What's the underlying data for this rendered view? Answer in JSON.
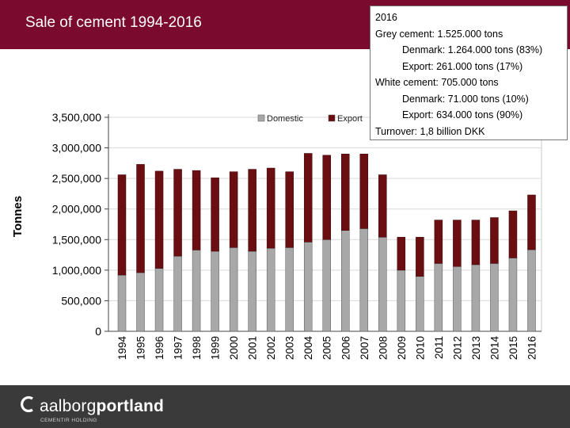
{
  "header": {
    "title": "Sale of cement 1994-2016"
  },
  "info_box": {
    "lines": [
      "2016",
      "Grey cement: 1.525.000 tons",
      "Denmark: 1.264.000 tons (83%)",
      "Export: 261.000 tons (17%)",
      "White cement: 705.000 tons",
      "Denmark: 71.000 tons (10%)",
      "Export: 634.000 tons (90%)",
      "Turnover: 1,8 billion DKK"
    ]
  },
  "footer": {
    "logo_part1": "aalborg",
    "logo_part2": "portland",
    "logo_subtitle": "CEMENTIR HOLDING"
  },
  "chart_data": {
    "type": "bar",
    "stacked": true,
    "categories": [
      "1994",
      "1995",
      "1996",
      "1997",
      "1998",
      "1999",
      "2000",
      "2001",
      "2002",
      "2003",
      "2004",
      "2005",
      "2006",
      "2007",
      "2008",
      "2009",
      "2010",
      "2011",
      "2012",
      "2013",
      "2014",
      "2015",
      "2016"
    ],
    "series": [
      {
        "name": "Domestic",
        "color": "#a8a8a8",
        "values": [
          920000,
          960000,
          1030000,
          1230000,
          1330000,
          1310000,
          1370000,
          1310000,
          1360000,
          1370000,
          1460000,
          1500000,
          1650000,
          1680000,
          1540000,
          1000000,
          900000,
          1110000,
          1060000,
          1090000,
          1110000,
          1200000,
          1335000
        ]
      },
      {
        "name": "Export",
        "color": "#6b0e12",
        "values": [
          1640000,
          1770000,
          1590000,
          1420000,
          1300000,
          1200000,
          1240000,
          1340000,
          1310000,
          1240000,
          1450000,
          1380000,
          1250000,
          1220000,
          1020000,
          540000,
          640000,
          710000,
          760000,
          730000,
          750000,
          770000,
          895000
        ]
      }
    ],
    "ylabel": "Tonnes",
    "xlabel": "",
    "ylim": [
      0,
      3500000
    ],
    "yticks": [
      0,
      500000,
      1000000,
      1500000,
      2000000,
      2500000,
      3000000,
      3500000
    ],
    "ytick_labels": [
      "0",
      "500,000",
      "1,000,000",
      "1,500,000",
      "2,000,000",
      "2,500,000",
      "3,000,000",
      "3,500,000"
    ],
    "grid": true,
    "legend": "top-right"
  }
}
